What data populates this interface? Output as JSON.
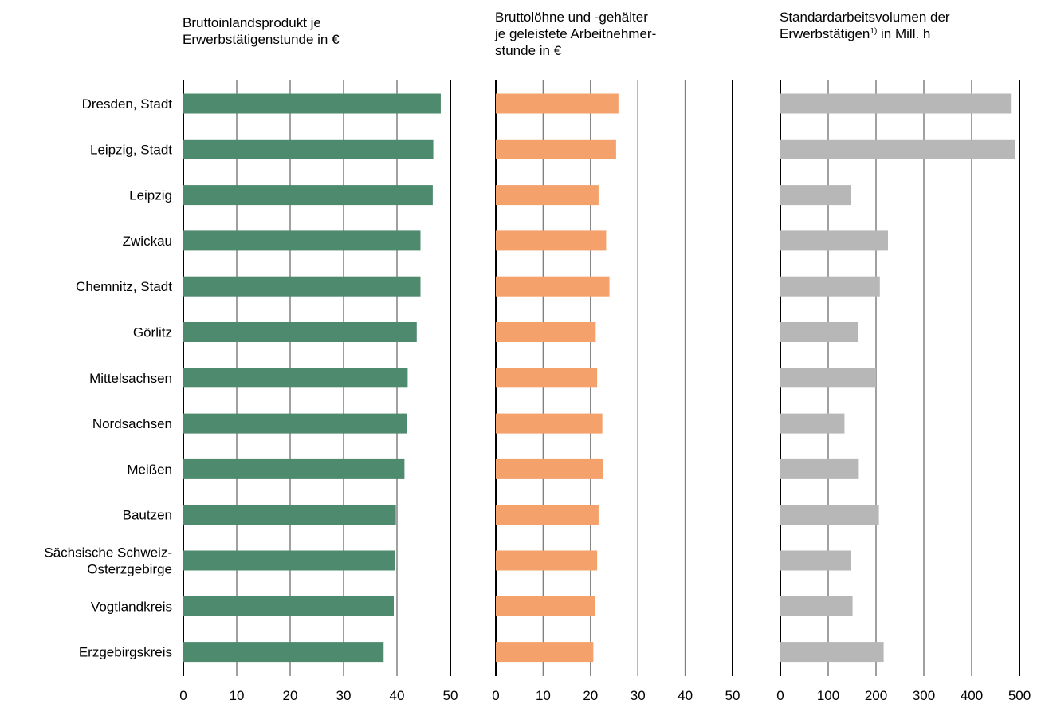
{
  "chart_data": {
    "type": "bar",
    "orientation": "horizontal",
    "categories": [
      "Dresden, Stadt",
      "Leipzig, Stadt",
      "Leipzig",
      "Zwickau",
      "Chemnitz, Stadt",
      "Görlitz",
      "Mittelsachsen",
      "Nordsachsen",
      "Meißen",
      "Bautzen",
      [
        "Sächsische Schweiz-",
        "Osterzgebirge"
      ],
      "Vogtlandkreis",
      "Erzgebirgskreis"
    ],
    "panels": [
      {
        "title_lines": [
          "Bruttoinlandsprodukt je",
          "Erwerbstätigenstunde in €"
        ],
        "color": "#4e8a6e",
        "xlim": [
          0,
          50
        ],
        "ticks": [
          0,
          10,
          20,
          30,
          40,
          50
        ],
        "tick_labels": [
          "0",
          "10",
          "20",
          "30",
          "40",
          "50"
        ],
        "gridline_color": "#808080",
        "values": [
          48.2,
          46.8,
          46.7,
          44.4,
          44.4,
          43.7,
          42.0,
          41.9,
          41.4,
          39.8,
          39.7,
          39.4,
          37.5
        ]
      },
      {
        "title_lines": [
          "Bruttolöhne und -gehälter",
          "je geleistete Arbeitnehmer-",
          "stunde in €"
        ],
        "color": "#f4a16b",
        "xlim": [
          0,
          50
        ],
        "ticks": [
          0,
          10,
          20,
          30,
          40,
          50
        ],
        "tick_labels": [
          "0",
          "10",
          "20",
          "30",
          "40",
          "50"
        ],
        "gridline_color": "#808080",
        "values": [
          25.9,
          25.4,
          21.7,
          23.3,
          24.0,
          21.1,
          21.4,
          22.5,
          22.7,
          21.7,
          21.4,
          21.0,
          20.6
        ]
      },
      {
        "title_lines": [
          "Standardarbeitsvolumen der",
          "Erwerbstätigen"
        ],
        "title_footnote": "1)",
        "title_suffix": " in Mill. h",
        "color": "#b7b7b7",
        "xlim": [
          0,
          500
        ],
        "ticks": [
          0,
          100,
          200,
          300,
          400,
          500
        ],
        "tick_labels": [
          "0",
          "100",
          "200",
          "300",
          "400",
          "500"
        ],
        "gridline_color": "#808080",
        "values": [
          482,
          490,
          148,
          225,
          208,
          162,
          200,
          134,
          164,
          206,
          148,
          151,
          216
        ]
      }
    ]
  }
}
